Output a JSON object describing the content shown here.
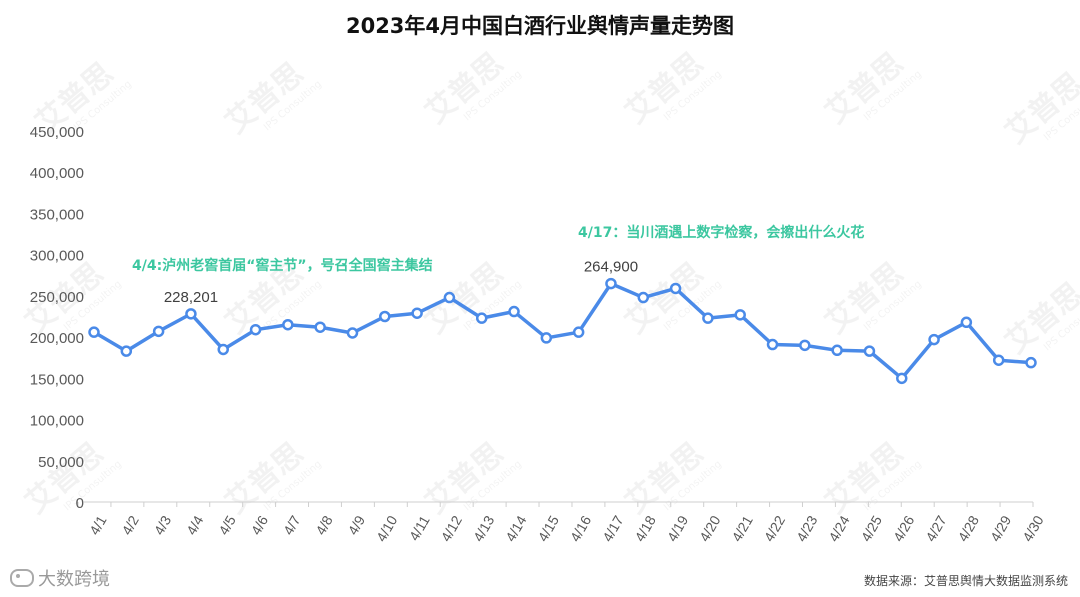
{
  "chart_data": {
    "type": "line",
    "title": "2023年4月中国白酒行业舆情声量走势图",
    "x": [
      "4/1",
      "4/2",
      "4/3",
      "4/4",
      "4/5",
      "4/6",
      "4/7",
      "4/8",
      "4/9",
      "4/10",
      "4/11",
      "4/12",
      "4/13",
      "4/14",
      "4/15",
      "4/16",
      "4/17",
      "4/18",
      "4/19",
      "4/20",
      "4/21",
      "4/22",
      "4/23",
      "4/24",
      "4/25",
      "4/26",
      "4/27",
      "4/28",
      "4/29",
      "4/30"
    ],
    "series": [
      {
        "values": [
          206000,
          183000,
          207000,
          228201,
          185000,
          209000,
          215000,
          212000,
          205000,
          225000,
          229000,
          248000,
          223000,
          231000,
          199000,
          206000,
          264900,
          248000,
          259000,
          223000,
          227000,
          191000,
          190000,
          184000,
          183000,
          150000,
          197000,
          218000,
          172000,
          169000
        ]
      }
    ],
    "ylim": [
      0,
      450000
    ],
    "yticks": [
      0,
      50000,
      100000,
      150000,
      200000,
      250000,
      300000,
      350000,
      400000,
      450000
    ],
    "ytick_labels": [
      "0",
      "50,000",
      "100,000",
      "150,000",
      "200,000",
      "250,000",
      "300,000",
      "350,000",
      "400,000",
      "450,000"
    ],
    "data_labels": [
      {
        "x": "4/4",
        "text": "228,201"
      },
      {
        "x": "4/17",
        "text": "264,900"
      }
    ],
    "annotations": [
      {
        "text": "4/4:泸州老窖首届“窖主节”，号召全国窖主集结"
      },
      {
        "text": "4/17：当川酒遇上数字检察，会擦出什么火花"
      }
    ],
    "grid": false,
    "legend": "none",
    "colors": {
      "line": "#4A8AE8",
      "annotation": "#3CC7A0",
      "axis_text": "#595959"
    }
  },
  "footer": {
    "source": "数据来源：艾普思舆情大数据监测系统",
    "brand": "大数跨境"
  },
  "watermark": {
    "text": "艾普思",
    "sub": "IPS Consulting"
  }
}
